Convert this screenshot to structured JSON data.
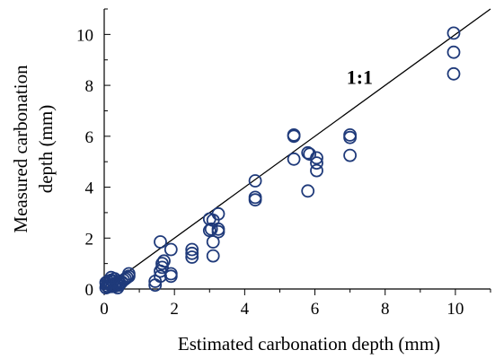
{
  "chart_data": {
    "type": "scatter",
    "title": "",
    "xlabel": "Estimated carbonation depth (mm)",
    "ylabel": "Measured carbonation depth (mm)",
    "ylabel_lines": [
      "Measured carbonation",
      "depth (mm)"
    ],
    "xlim": [
      0,
      11
    ],
    "ylim": [
      0,
      11
    ],
    "xticks": [
      0,
      2,
      4,
      6,
      8,
      10
    ],
    "yticks": [
      0,
      2,
      4,
      6,
      8,
      10
    ],
    "grid": false,
    "reference_line": {
      "label": "1:1",
      "from": [
        0,
        0
      ],
      "to": [
        11,
        11
      ]
    },
    "marker_color": "#1f3a7a",
    "series": [
      {
        "points": [
          [
            0.05,
            0.05
          ],
          [
            0.08,
            0.12
          ],
          [
            0.1,
            0.2
          ],
          [
            0.12,
            0.08
          ],
          [
            0.15,
            0.25
          ],
          [
            0.18,
            0.15
          ],
          [
            0.2,
            0.35
          ],
          [
            0.22,
            0.1
          ],
          [
            0.25,
            0.3
          ],
          [
            0.28,
            0.18
          ],
          [
            0.3,
            0.4
          ],
          [
            0.32,
            0.12
          ],
          [
            0.35,
            0.22
          ],
          [
            0.38,
            0.05
          ],
          [
            0.4,
            0.3
          ],
          [
            0.42,
            0.15
          ],
          [
            0.45,
            0.2
          ],
          [
            0.5,
            0.28
          ],
          [
            0.55,
            0.35
          ],
          [
            0.6,
            0.4
          ],
          [
            0.65,
            0.45
          ],
          [
            0.7,
            0.5
          ],
          [
            0.7,
            0.6
          ],
          [
            0.1,
            0.3
          ],
          [
            0.05,
            0.25
          ],
          [
            0.2,
            0.45
          ],
          [
            1.45,
            0.3
          ],
          [
            1.45,
            0.15
          ],
          [
            1.6,
            0.5
          ],
          [
            1.6,
            0.7
          ],
          [
            1.65,
            0.85
          ],
          [
            1.65,
            1.0
          ],
          [
            1.7,
            1.1
          ],
          [
            1.6,
            1.85
          ],
          [
            1.9,
            1.55
          ],
          [
            1.9,
            0.6
          ],
          [
            1.9,
            0.5
          ],
          [
            2.5,
            1.55
          ],
          [
            2.5,
            1.4
          ],
          [
            2.5,
            1.25
          ],
          [
            3.0,
            2.75
          ],
          [
            3.0,
            2.3
          ],
          [
            3.05,
            2.35
          ],
          [
            3.1,
            2.7
          ],
          [
            3.1,
            1.85
          ],
          [
            3.1,
            1.3
          ],
          [
            3.25,
            2.95
          ],
          [
            3.25,
            2.35
          ],
          [
            3.25,
            2.25
          ],
          [
            4.3,
            4.25
          ],
          [
            4.3,
            3.6
          ],
          [
            4.3,
            3.5
          ],
          [
            5.4,
            6.05
          ],
          [
            5.4,
            6.0
          ],
          [
            5.4,
            5.1
          ],
          [
            5.8,
            5.35
          ],
          [
            5.85,
            5.3
          ],
          [
            5.8,
            3.85
          ],
          [
            6.05,
            5.15
          ],
          [
            6.05,
            4.95
          ],
          [
            6.05,
            4.65
          ],
          [
            7.0,
            6.05
          ],
          [
            7.0,
            5.95
          ],
          [
            7.0,
            5.25
          ],
          [
            9.95,
            10.05
          ],
          [
            9.95,
            9.3
          ],
          [
            9.95,
            8.45
          ]
        ]
      }
    ]
  }
}
